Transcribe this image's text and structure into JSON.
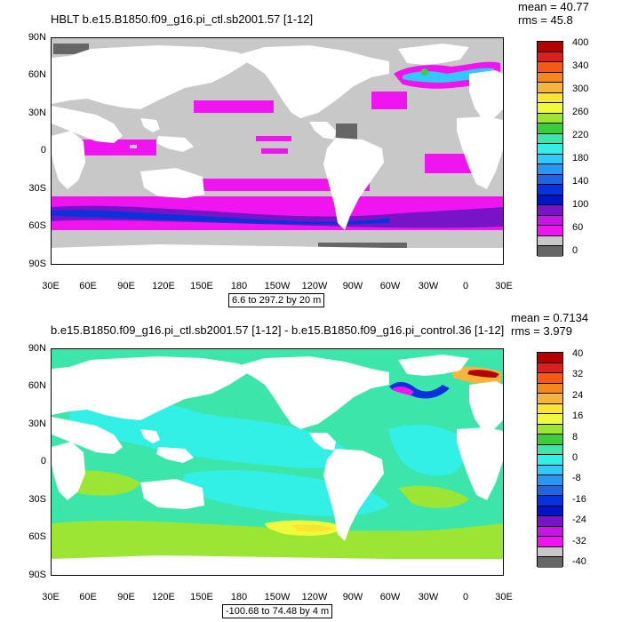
{
  "panels": [
    {
      "title": "HBLT b.e15.B1850.f09_g16.pi_ctl.sb2001.57 [1-12]",
      "mean": "mean = 40.77",
      "rms": "rms = 45.8",
      "range": "6.6 to 297.2 by 20 m",
      "colorbar": {
        "labels": [
          "400",
          "340",
          "300",
          "260",
          "220",
          "180",
          "140",
          "100",
          "60",
          "0"
        ],
        "colors": [
          "#b40000",
          "#dc1e1e",
          "#f55a14",
          "#f5871e",
          "#f5b43c",
          "#fae632",
          "#f0fa3c",
          "#9be632",
          "#3ccd3c",
          "#3ce6aa",
          "#32f0e6",
          "#32c8fa",
          "#2896f5",
          "#1e64e6",
          "#0a32dc",
          "#0014c8",
          "#7814c8",
          "#c814e6",
          "#f014f0",
          "#c8c8c8",
          "#666666"
        ]
      }
    },
    {
      "title": "b.e15.B1850.f09_g16.pi_ctl.sb2001.57 [1-12] - b.e15.B1850.f09_g16.pi_control.36 [1-12]",
      "mean": "mean = 0.7134",
      "rms": "rms = 3.979",
      "range": "-100.68 to 74.48 by 4 m",
      "colorbar": {
        "labels": [
          "40",
          "32",
          "24",
          "16",
          "8",
          "0",
          "-8",
          "-16",
          "-24",
          "-32",
          "-40"
        ],
        "colors": [
          "#b40000",
          "#dc1e1e",
          "#f55a14",
          "#f5871e",
          "#f5b43c",
          "#fae632",
          "#f0fa3c",
          "#9be632",
          "#3ccd3c",
          "#3ce6aa",
          "#32f0e6",
          "#32c8fa",
          "#2896f5",
          "#1e64e6",
          "#0a32dc",
          "#0014c8",
          "#7814c8",
          "#c814e6",
          "#f014f0",
          "#c8c8c8",
          "#666666"
        ]
      }
    }
  ],
  "axes": {
    "lat_labels": [
      "90N",
      "60N",
      "30N",
      "0",
      "30S",
      "60S",
      "90S"
    ],
    "lon_labels": [
      "30E",
      "60E",
      "90E",
      "120E",
      "150E",
      "180",
      "150W",
      "120W",
      "90W",
      "60W",
      "30W",
      "0",
      "30E"
    ]
  }
}
